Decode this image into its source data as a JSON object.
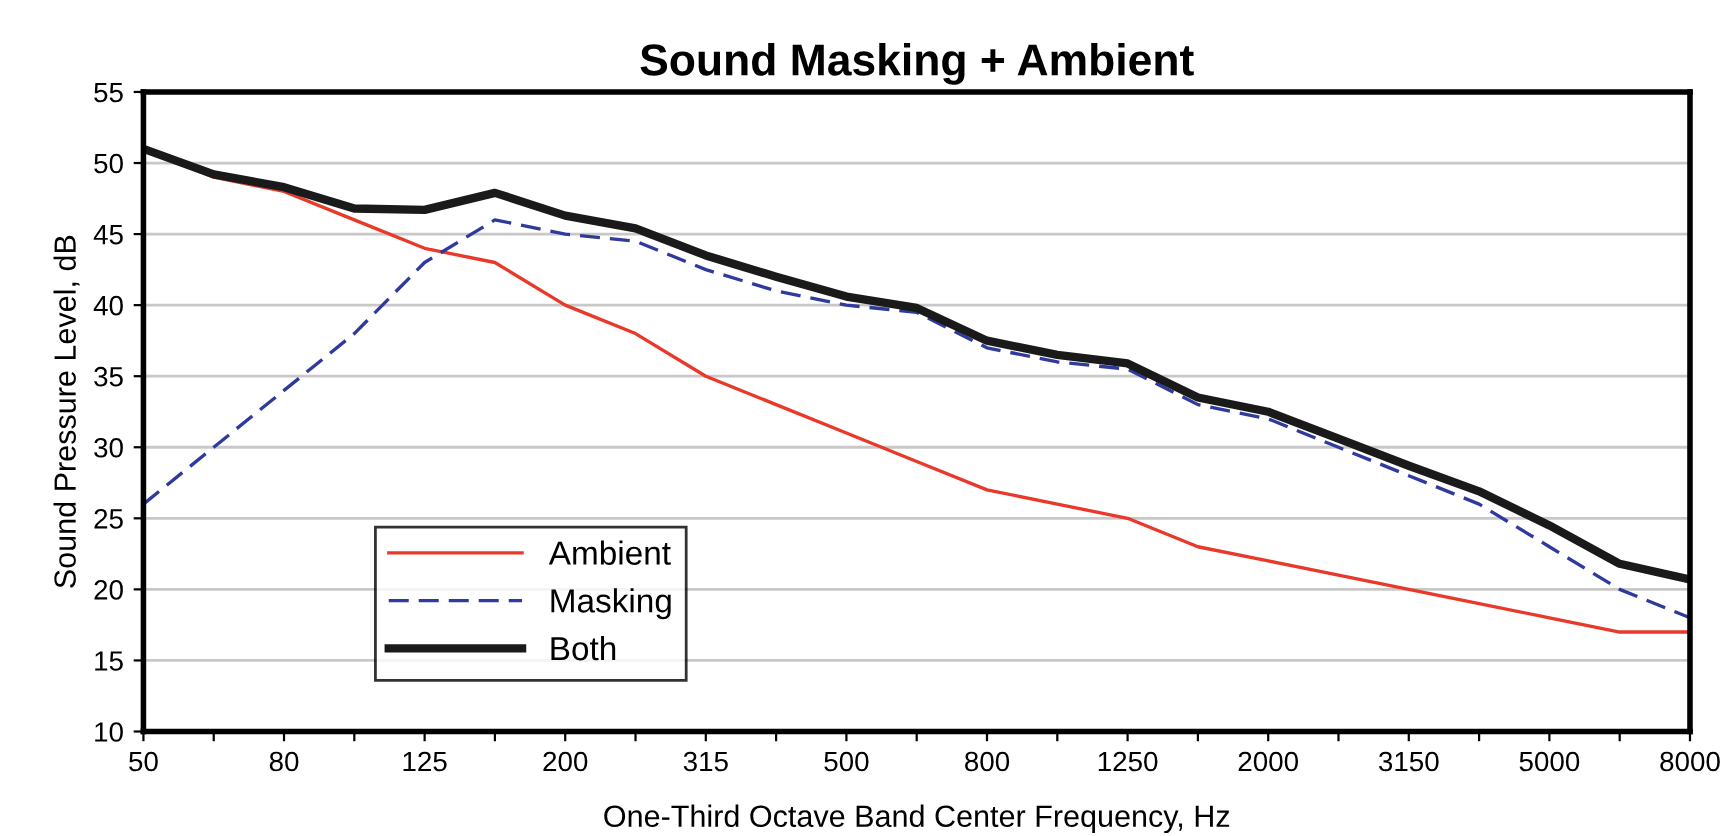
{
  "chart_data": {
    "type": "line",
    "title": "Sound Masking + Ambient",
    "xlabel": "One-Third Octave Band Center Frequency, Hz",
    "ylabel": "Sound Pressure Level, dB",
    "categories": [
      "50",
      null,
      "80",
      null,
      "125",
      null,
      "200",
      null,
      "315",
      null,
      "500",
      null,
      "800",
      null,
      "1250",
      null,
      "2000",
      null,
      "3150",
      null,
      "5000",
      null,
      "8000"
    ],
    "series": [
      {
        "name": "Ambient",
        "color": "#e8392a",
        "line_style": "solid",
        "values": [
          51,
          49,
          48,
          46,
          44,
          43,
          40,
          38,
          35,
          33,
          31,
          29,
          27,
          26,
          25,
          23,
          22,
          21,
          20,
          19,
          18,
          17,
          17
        ]
      },
      {
        "name": "Masking",
        "color": "#2e3a9c",
        "line_style": "dashed",
        "values": [
          26,
          30,
          34,
          38,
          43,
          46,
          45,
          44.5,
          42.5,
          41,
          40,
          39.5,
          37,
          36,
          35.5,
          33,
          32,
          30,
          28,
          26,
          23,
          20,
          18
        ]
      },
      {
        "name": "Both",
        "color": "#1a1a1a",
        "line_style": "solid",
        "values": [
          51,
          49.2,
          48.3,
          46.8,
          46.7,
          47.9,
          46.3,
          45.4,
          43.5,
          42,
          40.6,
          39.8,
          37.5,
          36.5,
          35.9,
          33.5,
          32.5,
          30.6,
          28.7,
          26.9,
          24.5,
          21.8,
          20.7
        ]
      }
    ],
    "ylim": [
      10,
      55
    ],
    "yticks": [
      10,
      15,
      20,
      25,
      30,
      35,
      40,
      45,
      50,
      55
    ],
    "grid": "y",
    "legend": "bottom left"
  }
}
